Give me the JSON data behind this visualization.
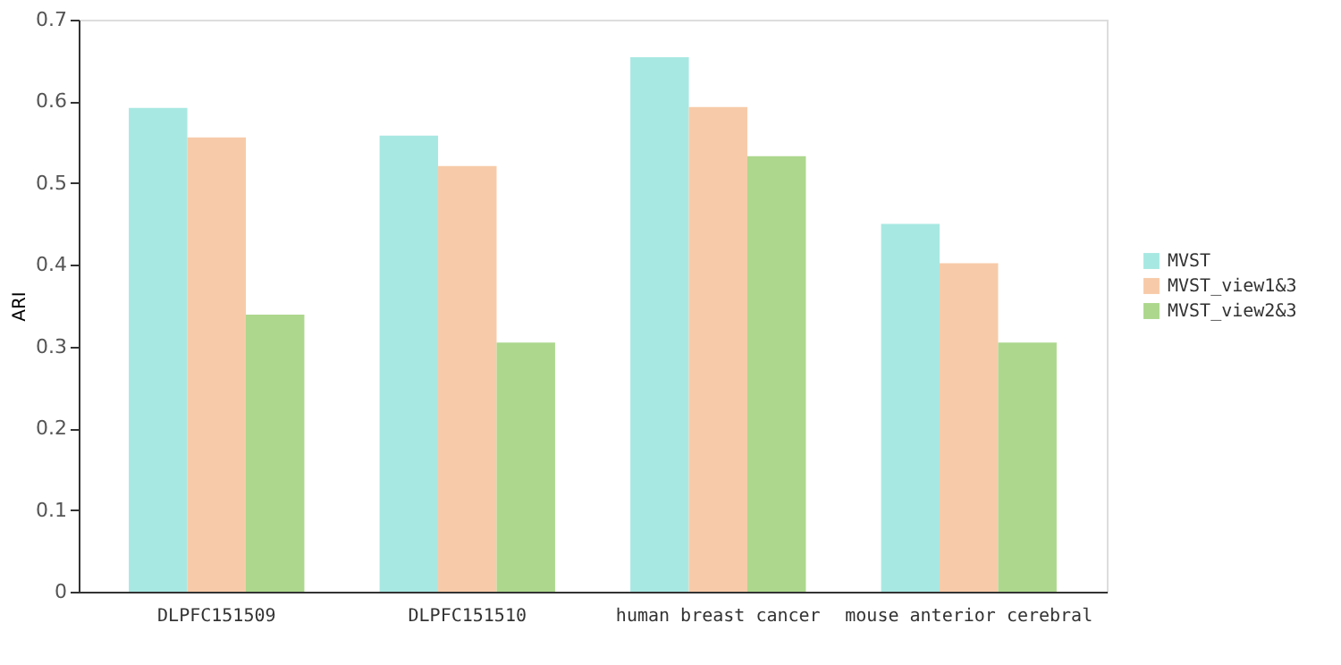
{
  "chart_data": {
    "type": "bar",
    "ylabel": "ARI",
    "categories": [
      "DLPFC151509",
      "DLPFC151510",
      "human breast cancer",
      "mouse anterior cerebral"
    ],
    "series": [
      {
        "name": "MVST",
        "color": "#a8e8e2",
        "values": [
          0.592,
          0.558,
          0.654,
          0.45
        ]
      },
      {
        "name": "MVST_view1&3",
        "color": "#f7cba9",
        "values": [
          0.556,
          0.521,
          0.593,
          0.402
        ]
      },
      {
        "name": "MVST_view2&3",
        "color": "#acd78d",
        "values": [
          0.339,
          0.305,
          0.533,
          0.305
        ]
      }
    ],
    "ylim": [
      0,
      0.7
    ],
    "yticks": [
      {
        "value": 0,
        "label": "0"
      },
      0.1,
      0.2,
      0.3,
      0.4,
      0.5,
      0.6,
      0.7
    ],
    "grid": false,
    "legend": "right"
  }
}
